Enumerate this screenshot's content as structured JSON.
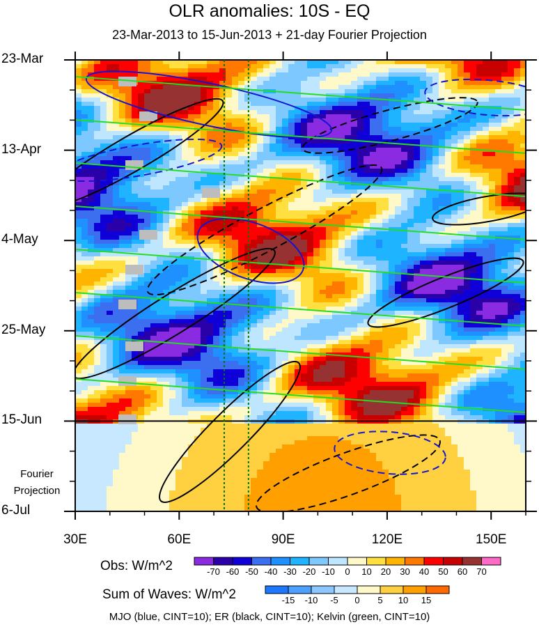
{
  "title": "OLR anomalies: 10S - EQ",
  "subtitle": "23-Mar-2013 to 15-Jun-2013 + 21-day Fourier Projection",
  "chart_data": {
    "type": "heatmap",
    "x_axis": {
      "ticks": [
        "30E",
        "60E",
        "90E",
        "120E",
        "150E"
      ],
      "range": [
        30,
        160
      ],
      "unit": "E"
    },
    "y_axis": {
      "ticks": [
        "23-Mar",
        "13-Apr",
        "4-May",
        "25-May",
        "15-Jun",
        "6-Jul"
      ],
      "reversed": true
    },
    "projection_label": [
      "Fourier",
      "Projection"
    ],
    "obs_colorbar": {
      "title": "Obs: W/m^2",
      "levels": [
        "-70",
        "-60",
        "-50",
        "-40",
        "-30",
        "-20",
        "-10",
        "0",
        "10",
        "20",
        "30",
        "40",
        "50",
        "60",
        "70"
      ],
      "colors": [
        "#8a2be2",
        "#2a00a8",
        "#1000d8",
        "#3c6ef0",
        "#1e90ff",
        "#1eb4ff",
        "#7cc8ff",
        "#bfe6ff",
        "#fff8c8",
        "#ffe040",
        "#ffb400",
        "#ff7800",
        "#ff0000",
        "#c80000",
        "#963232",
        "#ff69c8"
      ]
    },
    "waves_colorbar": {
      "title": "Sum of Waves: W/m^2",
      "levels": [
        "-15",
        "-10",
        "-5",
        "0",
        "5",
        "10",
        "15"
      ],
      "colors": [
        "#1e78ff",
        "#4ca0ff",
        "#8cc8ff",
        "#c8e8ff",
        "#fff8c8",
        "#ffd040",
        "#ffa000",
        "#ff6a00"
      ]
    },
    "vertical_reference_lines_lon": [
      73,
      80
    ],
    "forecast_start": "15-Jun",
    "contours": [
      {
        "name": "MJO",
        "color": "#1414d2"
      },
      {
        "name": "ER",
        "color": "#000000"
      },
      {
        "name": "Kelvin",
        "color": "#22dd22"
      }
    ]
  },
  "footer": "MJO (blue, CINT=10); ER (black, CINT=10); Kelvin (green, CINT=10)"
}
